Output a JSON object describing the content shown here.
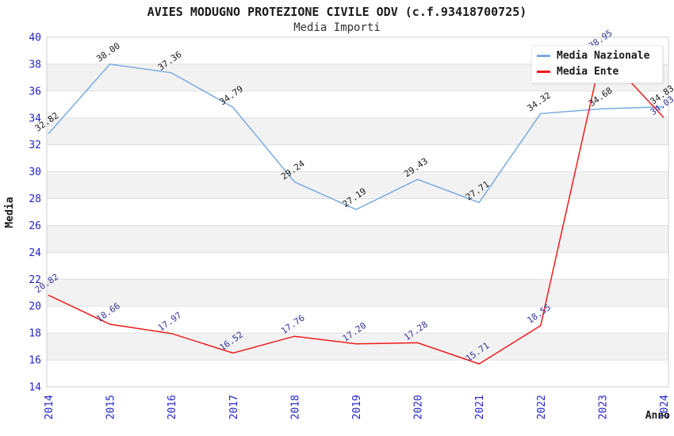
{
  "chart_data": {
    "type": "line",
    "title": "AVIES MODUGNO PROTEZIONE CIVILE ODV (c.f.93418700725)",
    "subtitle": "Media Importi",
    "xlabel": "Anno",
    "ylabel": "Media",
    "x": [
      "2014",
      "2015",
      "2016",
      "2017",
      "2018",
      "2019",
      "2020",
      "2021",
      "2022",
      "2023",
      "2024"
    ],
    "series": [
      {
        "name": "Media Nazionale",
        "color": "#78abe2",
        "label_color": "#1a1a1a",
        "values": [
          32.82,
          38.0,
          37.36,
          34.79,
          29.24,
          27.19,
          29.43,
          27.71,
          34.32,
          34.68,
          34.83
        ]
      },
      {
        "name": "Media Ente",
        "color": "#ee1c1c",
        "label_color": "#333399",
        "values": [
          20.82,
          18.66,
          17.97,
          16.52,
          17.76,
          17.2,
          17.28,
          15.71,
          18.55,
          38.95,
          34.03
        ]
      }
    ],
    "ylim": [
      14,
      40
    ],
    "y_tick_step": 2,
    "grid": true,
    "legend_position": "top-right",
    "tick_color": "#2323cc",
    "band_color": "#f2f2f2",
    "grid_color": "#e0e0e0",
    "border_color": "#cfcfcf"
  }
}
